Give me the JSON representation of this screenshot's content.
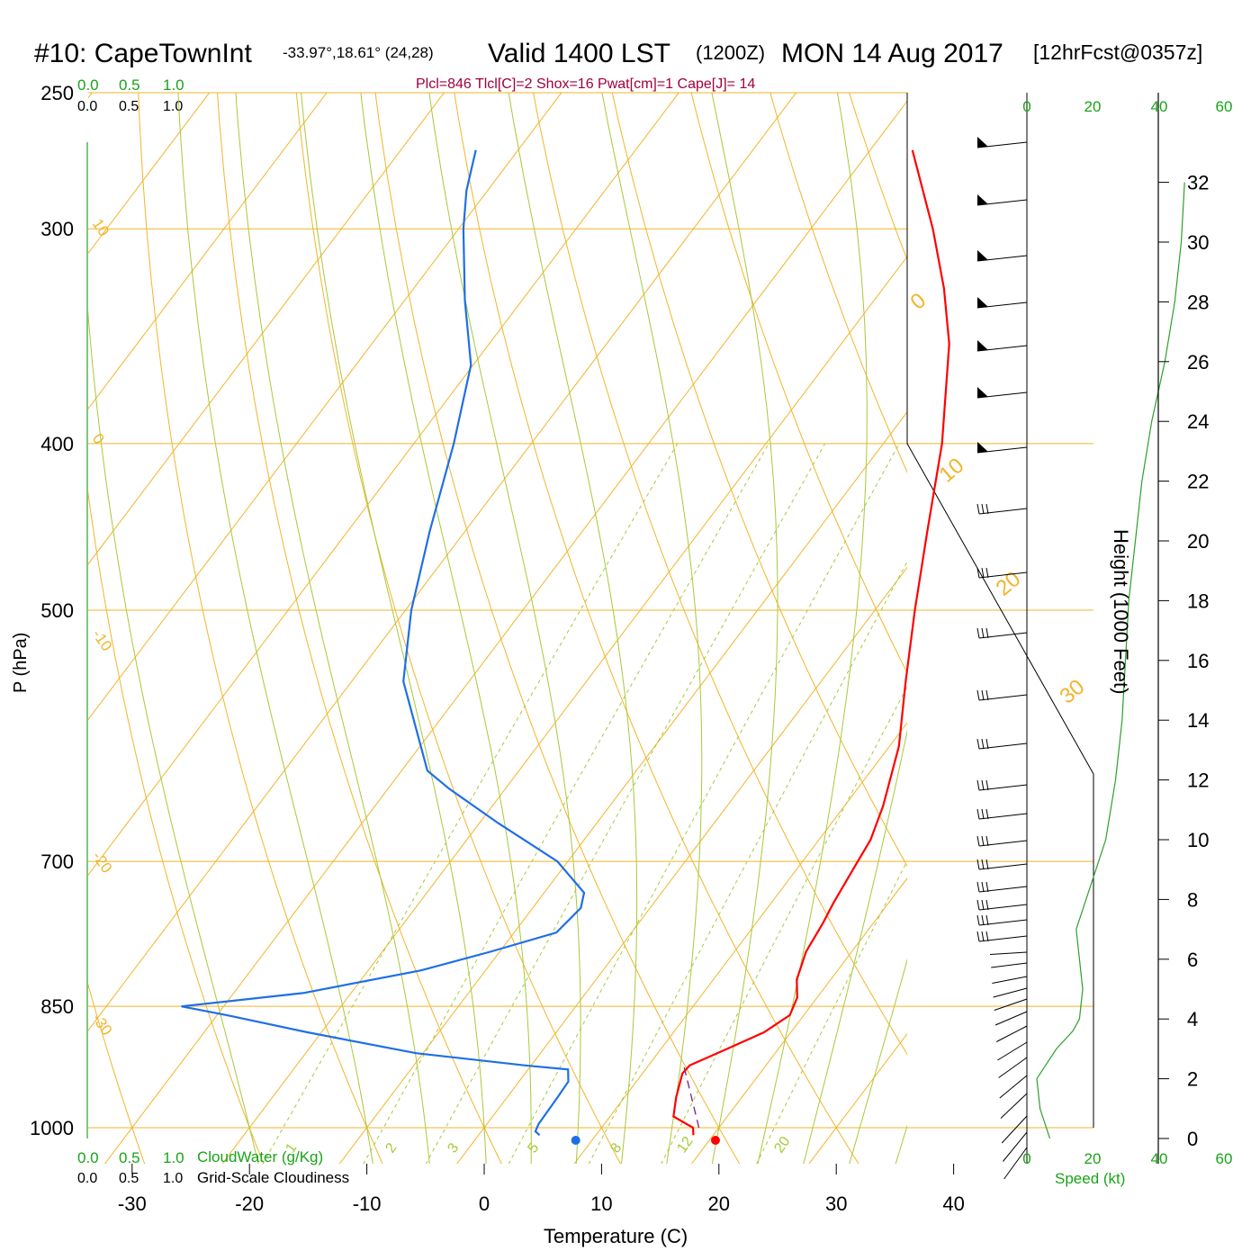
{
  "header": {
    "station": "#10: CapeTownInt",
    "coords": "-33.97°,18.61° (24,28)",
    "valid": "Valid 1400 LST",
    "utc": "(1200Z)",
    "date": "MON 14 Aug 2017",
    "forecast": "[12hrFcst@0357z]",
    "indices": "Plcl=846 Tlcl[C]=2 Shox=16 Pwat[cm]=1 Cape[J]= 14"
  },
  "colors": {
    "isotherm": "#f2b42a",
    "adiabat": "#a7c93a",
    "mixing_ratio": "#a7c93a",
    "temperature": "#ff0000",
    "dewpoint": "#1e6fe6",
    "parcel": "#7a1e8c",
    "speed_profile": "#2ca02c",
    "green_text": "#1aa31a",
    "indices_text": "#a0003c"
  },
  "labels": {
    "y_axis": "P (hPa)",
    "x_axis": "Temperature (C)",
    "height_axis": "Height (1000 Feet)",
    "cloud_water": "CloudWater (g/Kg)",
    "cloudiness": "Grid-Scale Cloudiness",
    "speed": "Speed (kt)",
    "scale_top_green": [
      "0.0",
      "0.5",
      "1.0"
    ],
    "scale_top_black": [
      "0.0",
      "0.5",
      "1.0"
    ],
    "scale_bottom_green": [
      "0.0",
      "0.5",
      "1.0"
    ],
    "scale_bottom_black": [
      "0.0",
      "0.5",
      "1.0"
    ],
    "speed_top_ticks": [
      "0",
      "20",
      "40",
      "60"
    ],
    "speed_bottom_ticks": [
      "0",
      "20",
      "40",
      "60"
    ],
    "isotherm_labels": [
      "10",
      "0",
      "-10",
      "-20",
      "-30",
      "0",
      "10",
      "20",
      "30"
    ],
    "mixing_labels": [
      "1",
      "2",
      "3",
      "5",
      "8",
      "12",
      "20"
    ]
  },
  "chart_data": {
    "type": "line",
    "pressure_ticks": [
      250,
      300,
      400,
      500,
      700,
      850,
      1000
    ],
    "temperature_ticks": [
      -30,
      -20,
      -10,
      0,
      10,
      20,
      30,
      40
    ],
    "height_ticks_kft": [
      0,
      2,
      4,
      6,
      8,
      10,
      12,
      14,
      16,
      18,
      20,
      22,
      24,
      26,
      28,
      30,
      32
    ],
    "temperature_profile": {
      "unit": "C",
      "points": [
        [
          1010,
          18.3
        ],
        [
          1000,
          17.8
        ],
        [
          985,
          15.4
        ],
        [
          960,
          14.4
        ],
        [
          930,
          13.4
        ],
        [
          920,
          13.5
        ],
        [
          900,
          15.6
        ],
        [
          880,
          17.7
        ],
        [
          860,
          18.8
        ],
        [
          840,
          18.3
        ],
        [
          820,
          17.1
        ],
        [
          790,
          16.1
        ],
        [
          760,
          15.7
        ],
        [
          740,
          15.3
        ],
        [
          700,
          14.7
        ],
        [
          680,
          14.4
        ],
        [
          650,
          13.3
        ],
        [
          600,
          10.8
        ],
        [
          550,
          7.2
        ],
        [
          500,
          3.4
        ],
        [
          450,
          -0.6
        ],
        [
          400,
          -5.0
        ],
        [
          350,
          -10.8
        ],
        [
          325,
          -14.8
        ],
        [
          300,
          -19.6
        ],
        [
          270,
          -26.4
        ]
      ]
    },
    "dewpoint_profile": {
      "unit": "C",
      "points": [
        [
          1010,
          5.2
        ],
        [
          1005,
          4.6
        ],
        [
          995,
          4.4
        ],
        [
          960,
          4.3
        ],
        [
          940,
          4.2
        ],
        [
          925,
          3.4
        ],
        [
          920,
          -0.5
        ],
        [
          905,
          -10.6
        ],
        [
          880,
          -21.2
        ],
        [
          860,
          -29.2
        ],
        [
          850,
          -33.6
        ],
        [
          835,
          -24.1
        ],
        [
          810,
          -15.5
        ],
        [
          790,
          -10.8
        ],
        [
          770,
          -6.4
        ],
        [
          745,
          -5.9
        ],
        [
          730,
          -6.6
        ],
        [
          700,
          -10.9
        ],
        [
          665,
          -18.4
        ],
        [
          635,
          -24.8
        ],
        [
          620,
          -27.8
        ],
        [
          550,
          -35.6
        ],
        [
          500,
          -39.5
        ],
        [
          450,
          -43.0
        ],
        [
          400,
          -46.6
        ],
        [
          360,
          -50.2
        ],
        [
          330,
          -54.9
        ],
        [
          300,
          -59.6
        ],
        [
          285,
          -61.8
        ],
        [
          270,
          -63.6
        ]
      ]
    },
    "parcel_path": {
      "points": [
        [
          1000,
          18.3
        ],
        [
          920,
          13.0
        ]
      ]
    },
    "surface_temperature_marker_c": 19.4,
    "surface_dewpoint_marker_c": 7.8,
    "wind_speed_kt_by_height_kft": [
      [
        0,
        7
      ],
      [
        1,
        4
      ],
      [
        2,
        3
      ],
      [
        3,
        9
      ],
      [
        3.6,
        14
      ],
      [
        4,
        16
      ],
      [
        5,
        17
      ],
      [
        6,
        16
      ],
      [
        7,
        15
      ],
      [
        8,
        18
      ],
      [
        9,
        21
      ],
      [
        10,
        24
      ],
      [
        12,
        27
      ],
      [
        14,
        29
      ],
      [
        16,
        30
      ],
      [
        18,
        31
      ],
      [
        20,
        33
      ],
      [
        22,
        35
      ],
      [
        24,
        38
      ],
      [
        26,
        42
      ],
      [
        28,
        45
      ],
      [
        30,
        47
      ],
      [
        32,
        48
      ]
    ]
  }
}
